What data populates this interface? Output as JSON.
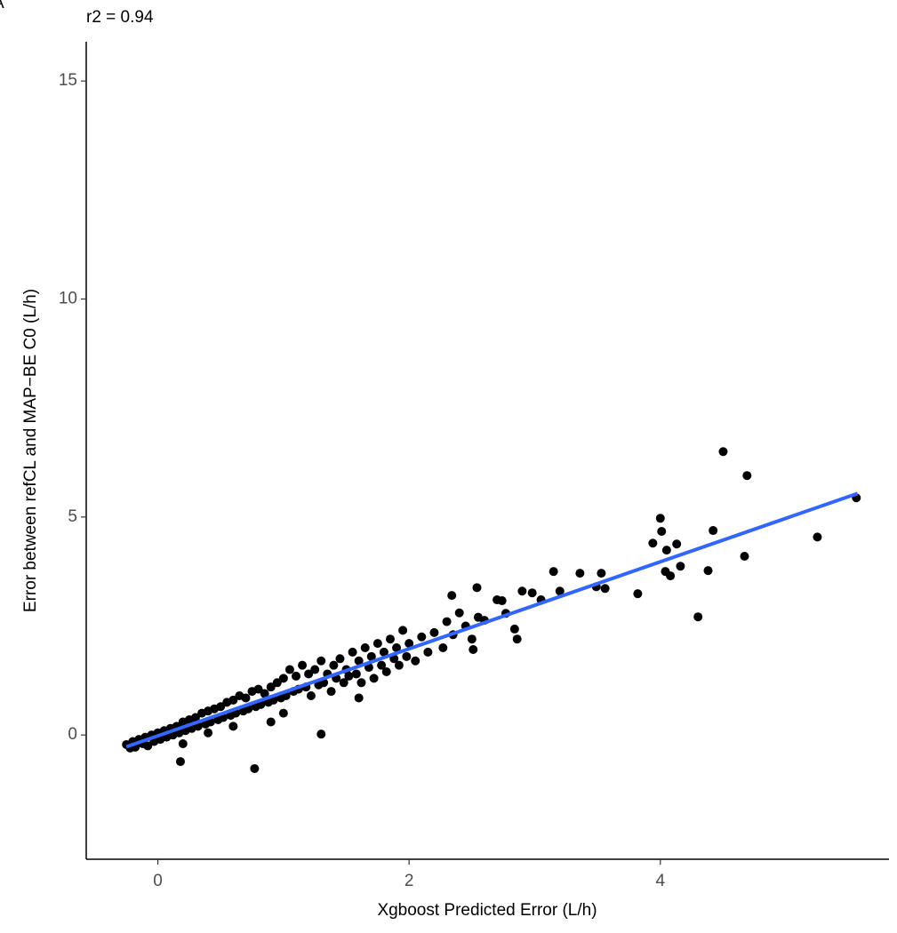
{
  "chart_data": {
    "type": "scatter",
    "tag": "A",
    "title": "r2 = 0.94",
    "x_label": "Xgboost Predicted Error (L/h)",
    "y_label": "Error between refCL and MAP−BE C0 (L/h)",
    "xlim": [
      -0.57,
      5.82
    ],
    "ylim": [
      -2.85,
      15.9
    ],
    "xticks": [
      0,
      2,
      4
    ],
    "yticks": [
      0,
      5,
      10,
      15
    ],
    "grid": false,
    "series": [
      {
        "color": "#000000",
        "x": [
          -0.25,
          -0.22,
          -0.2,
          -0.18,
          -0.15,
          -0.12,
          -0.1,
          -0.08,
          -0.05,
          -0.03,
          0.0,
          0.02,
          0.05,
          0.07,
          0.1,
          0.12,
          0.15,
          0.17,
          0.2,
          0.22,
          0.25,
          0.27,
          0.3,
          0.32,
          0.35,
          0.38,
          0.4,
          0.42,
          0.45,
          0.48,
          0.5,
          0.52,
          0.55,
          0.58,
          0.6,
          0.62,
          0.65,
          0.68,
          0.7,
          0.72,
          0.75,
          0.78,
          0.8,
          0.82,
          0.85,
          0.88,
          0.9,
          0.92,
          0.95,
          0.98,
          1.0,
          1.02,
          1.05,
          1.08,
          1.1,
          1.12,
          1.15,
          1.18,
          1.2,
          1.22,
          1.25,
          1.28,
          1.3,
          1.32,
          1.35,
          1.38,
          1.4,
          1.42,
          1.45,
          1.48,
          1.5,
          1.52,
          1.55,
          1.58,
          1.6,
          1.62,
          1.65,
          1.68,
          1.7,
          1.72,
          1.75,
          1.78,
          1.8,
          1.82,
          1.85,
          1.88,
          1.9,
          1.92,
          1.95,
          1.98,
          2.0,
          2.05,
          2.1,
          2.15,
          2.2,
          2.3,
          2.35,
          2.4,
          2.45,
          2.5,
          2.55,
          2.7,
          2.9,
          3.05,
          3.2,
          0.6,
          0.9,
          1.0,
          1.6,
          0.4,
          0.2,
          0.18,
          0.77,
          1.3,
          5.56,
          5.25,
          4.69,
          4.5,
          4.67,
          4.42,
          4.3,
          4.38,
          4.0,
          4.01,
          3.94,
          4.13,
          4.16,
          4.05,
          4.04,
          4.08,
          3.82,
          3.56,
          3.53,
          3.36,
          3.15,
          3.49,
          2.98,
          2.77,
          2.86,
          2.84,
          2.74,
          2.6,
          2.54,
          2.34,
          2.51,
          2.27
        ],
        "values": [
          -0.22,
          -0.3,
          -0.15,
          -0.28,
          -0.1,
          -0.2,
          -0.05,
          -0.25,
          0.0,
          -0.15,
          0.05,
          -0.1,
          0.1,
          -0.05,
          0.15,
          0.0,
          0.2,
          0.05,
          0.3,
          0.1,
          0.35,
          0.15,
          0.4,
          0.2,
          0.5,
          0.25,
          0.55,
          0.3,
          0.6,
          0.35,
          0.65,
          0.4,
          0.75,
          0.45,
          0.8,
          0.5,
          0.9,
          0.55,
          0.85,
          0.6,
          1.0,
          0.65,
          1.05,
          0.7,
          0.95,
          0.75,
          1.1,
          0.8,
          1.2,
          0.85,
          1.3,
          0.9,
          1.5,
          1.0,
          1.35,
          1.05,
          1.6,
          1.1,
          1.4,
          0.9,
          1.5,
          1.15,
          1.7,
          1.2,
          1.4,
          1.0,
          1.6,
          1.3,
          1.75,
          1.2,
          1.5,
          1.35,
          1.9,
          1.4,
          1.7,
          1.2,
          2.0,
          1.55,
          1.8,
          1.3,
          2.1,
          1.6,
          1.9,
          1.45,
          2.2,
          1.75,
          2.0,
          1.6,
          2.4,
          1.8,
          2.1,
          1.7,
          2.25,
          1.9,
          2.35,
          2.6,
          2.3,
          2.8,
          2.5,
          2.2,
          2.7,
          3.1,
          3.3,
          3.1,
          3.3,
          0.2,
          0.3,
          0.5,
          0.85,
          0.05,
          -0.2,
          -0.61,
          -0.77,
          0.02,
          5.44,
          4.54,
          5.95,
          6.5,
          4.1,
          4.69,
          2.71,
          3.77,
          4.97,
          4.67,
          4.4,
          4.38,
          3.87,
          4.24,
          3.75,
          3.65,
          3.24,
          3.36,
          3.71,
          3.71,
          3.75,
          3.4,
          3.26,
          2.79,
          2.2,
          2.43,
          3.08,
          2.63,
          3.38,
          3.2,
          1.96,
          2.0
        ]
      }
    ],
    "fit": {
      "color": "#3366ff",
      "x": [
        -0.25,
        5.57
      ],
      "values": [
        -0.27,
        5.54
      ]
    }
  }
}
